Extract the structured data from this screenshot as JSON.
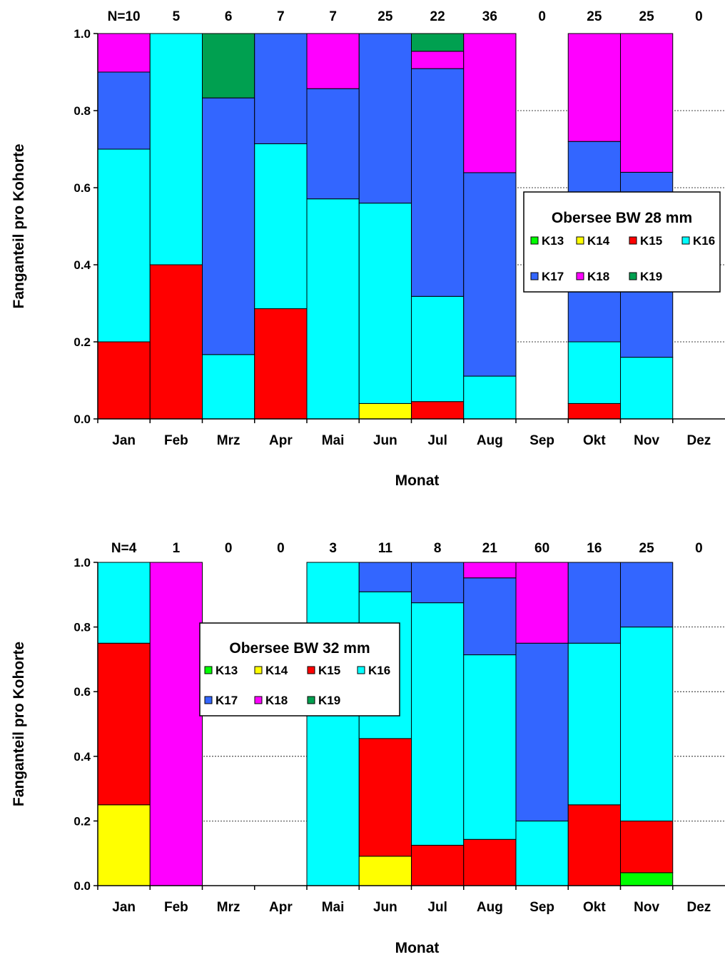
{
  "chart_data": [
    {
      "type": "bar",
      "stacked": true,
      "title": "",
      "xlabel": "Monat",
      "ylabel": "Fanganteil pro Kohorte",
      "ylim": [
        0,
        1.0
      ],
      "y_ticks": [
        "0.0",
        "0.2",
        "0.4",
        "0.6",
        "0.8",
        "1.0"
      ],
      "grid": "horizontal dotted",
      "categories": [
        "Jan",
        "Feb",
        "Mrz",
        "Apr",
        "Mai",
        "Jun",
        "Jul",
        "Aug",
        "Sep",
        "Okt",
        "Nov",
        "Dez"
      ],
      "n_labels": [
        "N=10",
        "5",
        "6",
        "7",
        "7",
        "25",
        "22",
        "36",
        "0",
        "25",
        "25",
        "0"
      ],
      "legend": {
        "title": "Obersee BW  28 mm",
        "placement": "right",
        "rows": [
          [
            "K13",
            "K14",
            "K15",
            "K16"
          ],
          [
            "K17",
            "K18",
            "K19"
          ]
        ]
      },
      "series": [
        {
          "name": "K13",
          "color": "#00ff00",
          "values": [
            0,
            0,
            0,
            0,
            0,
            0,
            0,
            0,
            0,
            0,
            0,
            0
          ]
        },
        {
          "name": "K14",
          "color": "#ffff00",
          "values": [
            0,
            0,
            0,
            0,
            0,
            0.04,
            0,
            0,
            0,
            0,
            0,
            0
          ]
        },
        {
          "name": "K15",
          "color": "#ff0000",
          "values": [
            0.2,
            0.4,
            0,
            0.286,
            0,
            0,
            0.045,
            0,
            0,
            0.04,
            0,
            0
          ]
        },
        {
          "name": "K16",
          "color": "#00ffff",
          "values": [
            0.5,
            0.6,
            0.167,
            0.428,
            0.571,
            0.52,
            0.273,
            0.111,
            0,
            0.16,
            0.16,
            0
          ]
        },
        {
          "name": "K17",
          "color": "#3366ff",
          "values": [
            0.2,
            0,
            0.666,
            0.286,
            0.286,
            0.44,
            0.591,
            0.528,
            0,
            0.52,
            0.48,
            0
          ]
        },
        {
          "name": "K18",
          "color": "#ff00ff",
          "values": [
            0.1,
            0,
            0,
            0,
            0.143,
            0,
            0.045,
            0.361,
            0,
            0.28,
            0.36,
            0
          ]
        },
        {
          "name": "K19",
          "color": "#00a050",
          "values": [
            0,
            0,
            0.167,
            0,
            0,
            0,
            0.046,
            0,
            0,
            0,
            0,
            0
          ]
        }
      ]
    },
    {
      "type": "bar",
      "stacked": true,
      "title": "",
      "xlabel": "Monat",
      "ylabel": "Fanganteil pro Kohorte",
      "ylim": [
        0,
        1.0
      ],
      "y_ticks": [
        "0.0",
        "0.2",
        "0.4",
        "0.6",
        "0.8",
        "1.0"
      ],
      "grid": "horizontal dotted",
      "categories": [
        "Jan",
        "Feb",
        "Mrz",
        "Apr",
        "Mai",
        "Jun",
        "Jul",
        "Aug",
        "Sep",
        "Okt",
        "Nov",
        "Dez"
      ],
      "n_labels": [
        "N=4",
        "1",
        "0",
        "0",
        "3",
        "11",
        "8",
        "21",
        "60",
        "16",
        "25",
        "0"
      ],
      "legend": {
        "title": "Obersee BW  32 mm",
        "placement": "center",
        "rows": [
          [
            "K13",
            "K14",
            "K15",
            "K16"
          ],
          [
            "K17",
            "K18",
            "K19"
          ]
        ]
      },
      "series": [
        {
          "name": "K13",
          "color": "#00ff00",
          "values": [
            0,
            0,
            0,
            0,
            0,
            0,
            0,
            0,
            0,
            0,
            0.04,
            0
          ]
        },
        {
          "name": "K14",
          "color": "#ffff00",
          "values": [
            0.25,
            0,
            0,
            0,
            0,
            0.091,
            0,
            0,
            0,
            0,
            0,
            0
          ]
        },
        {
          "name": "K15",
          "color": "#ff0000",
          "values": [
            0.5,
            0,
            0,
            0,
            0,
            0.364,
            0.125,
            0.143,
            0,
            0.25,
            0.16,
            0
          ]
        },
        {
          "name": "K16",
          "color": "#00ffff",
          "values": [
            0.25,
            0,
            0,
            0,
            1.0,
            0.454,
            0.75,
            0.571,
            0.2,
            0.5,
            0.6,
            0
          ]
        },
        {
          "name": "K17",
          "color": "#3366ff",
          "values": [
            0,
            0,
            0,
            0,
            0,
            0.091,
            0.125,
            0.238,
            0.55,
            0.25,
            0.2,
            0
          ]
        },
        {
          "name": "K18",
          "color": "#ff00ff",
          "values": [
            0,
            1.0,
            0,
            0,
            0,
            0,
            0,
            0.048,
            0.25,
            0,
            0,
            0
          ]
        },
        {
          "name": "K19",
          "color": "#00a050",
          "values": [
            0,
            0,
            0,
            0,
            0,
            0,
            0,
            0,
            0,
            0,
            0,
            0
          ]
        }
      ]
    }
  ]
}
